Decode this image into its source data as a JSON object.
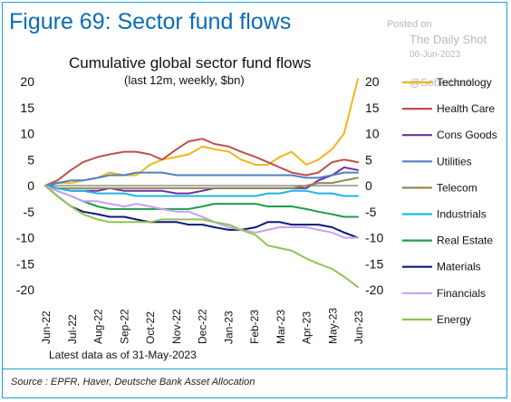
{
  "figure_title": "Figure 69: Sector fund flows",
  "watermark": {
    "posted_on": "Posted on",
    "site": "The Daily Shot",
    "date": "06-Jun-2023",
    "handle": "@SoberLook"
  },
  "footnote": "Latest data as of 31-May-2023",
  "source": "Source : EPFR, Haver, Deutsche Bank Asset Allocation",
  "colors": {
    "Technology": "#f2b619",
    "Health Care": "#c0504d",
    "Cons Goods": "#7030a0",
    "Utilities": "#4f81bd",
    "Telecom": "#948a54",
    "Industrials": "#1fb4e6",
    "Real Estate": "#1f9d4a",
    "Materials": "#0d1a7a",
    "Financials": "#c9a0ec",
    "Energy": "#92c353"
  },
  "chart_data": {
    "type": "line",
    "title": "Cumulative global sector fund flows",
    "subtitle": "(last 12m, weekly, $bn)",
    "xlabel": "",
    "ylabel": "",
    "ylim": [
      -20,
      20
    ],
    "y_ticks": [
      20,
      15,
      10,
      5,
      0,
      -5,
      -10,
      -15,
      -20
    ],
    "x_ticks": [
      "Jun-22",
      "Jul-22",
      "Aug-22",
      "Sep-22",
      "Oct-22",
      "Nov-22",
      "Dec-22",
      "Jan-23",
      "Feb-23",
      "Mar-23",
      "Apr-23",
      "May-23",
      "Jun-23"
    ],
    "grid": false,
    "legend_position": "right",
    "x": [
      "2022-06-01",
      "2022-06-15",
      "2022-07-01",
      "2022-07-15",
      "2022-08-01",
      "2022-08-15",
      "2022-09-01",
      "2022-09-15",
      "2022-10-01",
      "2022-10-15",
      "2022-11-01",
      "2022-11-15",
      "2022-12-01",
      "2022-12-15",
      "2023-01-01",
      "2023-01-15",
      "2023-02-01",
      "2023-02-15",
      "2023-03-01",
      "2023-03-15",
      "2023-04-01",
      "2023-04-15",
      "2023-05-01",
      "2023-05-15",
      "2023-05-31"
    ],
    "series": [
      {
        "name": "Technology",
        "values": [
          0,
          0.5,
          0.5,
          1,
          1.5,
          2.5,
          2,
          2,
          4,
          5,
          5.5,
          6,
          7.5,
          7,
          6.5,
          5,
          4,
          4,
          5.5,
          6.5,
          4,
          5,
          7,
          10,
          20.5
        ]
      },
      {
        "name": "Health Care",
        "values": [
          0,
          1,
          3,
          4.5,
          5.5,
          6,
          6.5,
          6.5,
          6,
          5,
          7,
          8.5,
          9,
          8,
          7.5,
          6.5,
          5.5,
          4.5,
          3.5,
          2.5,
          2,
          2.5,
          4.5,
          5,
          4.5
        ]
      },
      {
        "name": "Cons Goods",
        "values": [
          0,
          -0.5,
          -1,
          -1,
          -1,
          -0.5,
          -1,
          -1,
          -1,
          -1,
          -1.5,
          -1.5,
          -1,
          -0.5,
          -0.5,
          -0.5,
          -0.5,
          -0.5,
          -0.5,
          -0.5,
          -0.5,
          1,
          2,
          3.5,
          3
        ]
      },
      {
        "name": "Utilities",
        "values": [
          0,
          0.5,
          1,
          1,
          1.5,
          2,
          2,
          2.5,
          2.5,
          2.5,
          2,
          2,
          2,
          2,
          2,
          2,
          2,
          2,
          2,
          2,
          1.5,
          1.5,
          2,
          2.5,
          2.5
        ]
      },
      {
        "name": "Telecom",
        "values": [
          0,
          -0.5,
          -0.5,
          -0.5,
          -0.5,
          -0.5,
          -0.5,
          -0.5,
          -0.5,
          -0.5,
          -0.5,
          -0.5,
          -0.5,
          -0.5,
          -0.5,
          -0.5,
          -0.5,
          -0.5,
          -0.5,
          -0.5,
          0,
          0.5,
          0.5,
          1,
          1.5
        ]
      },
      {
        "name": "Industrials",
        "values": [
          0,
          -0.5,
          -1,
          -1,
          -1.5,
          -1.5,
          -1.5,
          -2,
          -2,
          -2,
          -2,
          -2,
          -2,
          -2,
          -2,
          -2,
          -2,
          -1.5,
          -1.5,
          -1,
          -1,
          -1.5,
          -1.5,
          -2,
          -2
        ]
      },
      {
        "name": "Real Estate",
        "values": [
          0,
          -1,
          -2,
          -3,
          -4,
          -4.5,
          -4.5,
          -4.5,
          -4.5,
          -4.5,
          -4.5,
          -4.5,
          -4,
          -3.5,
          -3.5,
          -3.5,
          -3.5,
          -4,
          -4,
          -4,
          -4.5,
          -5,
          -5.5,
          -6,
          -6
        ]
      },
      {
        "name": "Materials",
        "values": [
          0,
          -2,
          -4,
          -5,
          -5.5,
          -6,
          -6,
          -6.5,
          -7,
          -7,
          -7,
          -7.5,
          -7.5,
          -8,
          -8.5,
          -8.5,
          -8,
          -7,
          -7,
          -7.5,
          -7.5,
          -7.5,
          -8,
          -9,
          -10
        ]
      },
      {
        "name": "Financials",
        "values": [
          0,
          -1,
          -2,
          -3,
          -3,
          -3.5,
          -4,
          -3.5,
          -4,
          -4.5,
          -5,
          -5,
          -6,
          -7,
          -8,
          -8.5,
          -9,
          -8.5,
          -8,
          -8,
          -8,
          -8.5,
          -9,
          -10,
          -10
        ]
      },
      {
        "name": "Energy",
        "values": [
          0,
          -2,
          -4,
          -5.5,
          -6.5,
          -7,
          -7,
          -7,
          -7,
          -6.5,
          -6.5,
          -6.5,
          -6.5,
          -7,
          -7.5,
          -8.5,
          -9.5,
          -11.5,
          -12,
          -12.5,
          -14,
          -15,
          -16,
          -17.5,
          -19.5
        ]
      }
    ]
  }
}
